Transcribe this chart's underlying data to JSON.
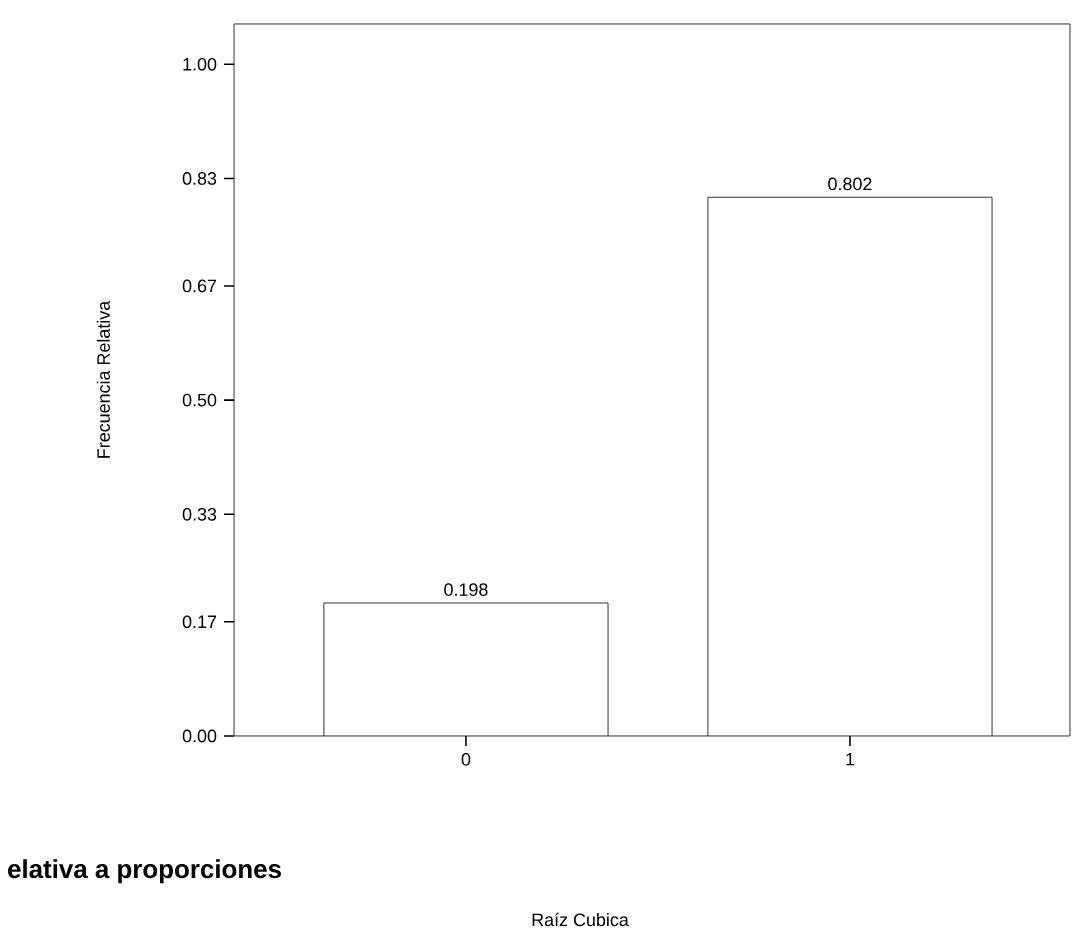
{
  "chart_data": {
    "type": "bar",
    "title": "elativa a proporciones",
    "subtitle": "Raíz Cubica",
    "ylabel": "Frecuencia Relativa",
    "categories": [
      "0",
      "1"
    ],
    "values": [
      0.198,
      0.802
    ],
    "color": "#ffffff",
    "data_labels": true,
    "ylim": [
      0,
      1.06
    ],
    "yticks": [
      {
        "value": 0,
        "label": "0.00"
      },
      {
        "value": 0.17,
        "label": "0.17"
      },
      {
        "value": 0.33,
        "label": "0.33"
      },
      {
        "value": 0.5,
        "label": "0.50"
      },
      {
        "value": 0.67,
        "label": "0.67"
      },
      {
        "value": 0.83,
        "label": "0.83"
      },
      {
        "value": 1.0,
        "label": "1.00"
      }
    ]
  }
}
